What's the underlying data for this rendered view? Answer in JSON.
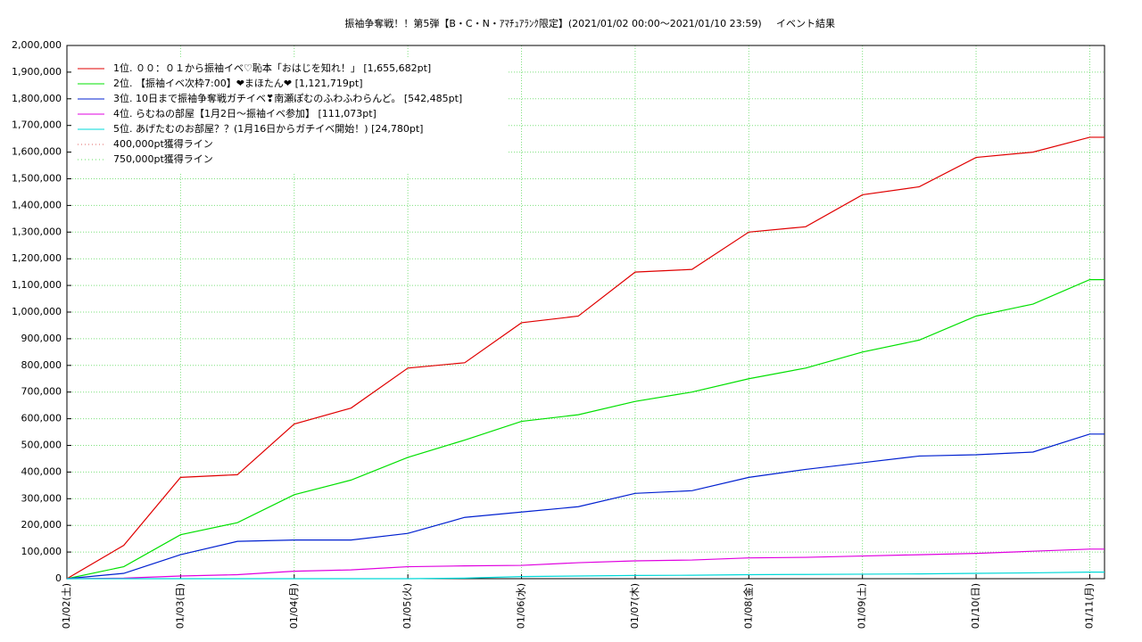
{
  "chart_data": {
    "type": "line",
    "title": "振袖争奪戦！！第5弾【B・C・N・ｱﾏﾁｭｱﾗﾝｸ限定】(2021/01/02 00:00〜2021/01/10 23:59)",
    "subtitle": "イベント結果",
    "x": [
      0,
      0.5,
      1,
      1.5,
      2,
      2.5,
      3,
      3.5,
      4,
      4.5,
      5,
      5.5,
      6,
      6.5,
      7,
      7.5,
      8,
      8.5,
      9,
      9.13
    ],
    "xlim": [
      0,
      9.13
    ],
    "xticks": [
      {
        "value": 0,
        "label": "01/02(土)"
      },
      {
        "value": 1,
        "label": "01/03(日)"
      },
      {
        "value": 2,
        "label": "01/04(月)"
      },
      {
        "value": 3,
        "label": "01/05(火)"
      },
      {
        "value": 4,
        "label": "01/06(水)"
      },
      {
        "value": 5,
        "label": "01/07(木)"
      },
      {
        "value": 6,
        "label": "01/08(金)"
      },
      {
        "value": 7,
        "label": "01/09(土)"
      },
      {
        "value": 8,
        "label": "01/10(日)"
      },
      {
        "value": 9,
        "label": "01/11(月)"
      }
    ],
    "ylim": [
      0,
      2000000
    ],
    "yticks": [
      0,
      {
        "value": 100000,
        "label": "100,000"
      },
      {
        "value": 200000,
        "label": "200,000"
      },
      {
        "value": 300000,
        "label": "300,000"
      },
      {
        "value": 400000,
        "label": "400,000"
      },
      {
        "value": 500000,
        "label": "500,000"
      },
      {
        "value": 600000,
        "label": "600,000"
      },
      {
        "value": 700000,
        "label": "700,000"
      },
      {
        "value": 800000,
        "label": "800,000"
      },
      {
        "value": 900000,
        "label": "900,000"
      },
      {
        "value": 1000000,
        "label": "1,000,000"
      },
      {
        "value": 1100000,
        "label": "1,100,000"
      },
      {
        "value": 1200000,
        "label": "1,200,000"
      },
      {
        "value": 1300000,
        "label": "1,300,000"
      },
      {
        "value": 1400000,
        "label": "1,400,000"
      },
      {
        "value": 1500000,
        "label": "1,500,000"
      },
      {
        "value": 1600000,
        "label": "1,600,000"
      },
      {
        "value": 1700000,
        "label": "1,700,000"
      },
      {
        "value": 1800000,
        "label": "1,800,000"
      },
      {
        "value": 1900000,
        "label": "1,900,000"
      },
      {
        "value": 2000000,
        "label": "2,000,000"
      }
    ],
    "grid": true,
    "legend": "top-left",
    "series": [
      {
        "name": "1位. ００：０１から振袖イベ♡恥本「おはじを知れ！」 [1,655,682pt]",
        "color": "#e00000",
        "values": [
          0,
          125000,
          380000,
          390000,
          580000,
          640000,
          790000,
          810000,
          960000,
          985000,
          1150000,
          1160000,
          1300000,
          1320000,
          1440000,
          1470000,
          1580000,
          1600000,
          1655682,
          1655682
        ]
      },
      {
        "name": "2位. 【振袖イベ次枠7:00】❤まほたん❤ [1,121,719pt]",
        "color": "#00e000",
        "values": [
          0,
          45000,
          165000,
          210000,
          315000,
          370000,
          455000,
          520000,
          590000,
          615000,
          665000,
          700000,
          750000,
          790000,
          850000,
          895000,
          985000,
          1030000,
          1121719,
          1121719
        ]
      },
      {
        "name": "3位. 10日まで振袖争奪戦ガチイベ❣南瀬ぽむのふわふわらんど。 [542,485pt]",
        "color": "#0020d0",
        "values": [
          0,
          20000,
          90000,
          140000,
          145000,
          145000,
          170000,
          230000,
          250000,
          270000,
          320000,
          330000,
          380000,
          410000,
          435000,
          460000,
          465000,
          475000,
          542485,
          542485
        ]
      },
      {
        "name": "4位. らむねの部屋【1月2日〜振袖イベ参加】 [111,073pt]",
        "color": "#e000e0",
        "values": [
          0,
          2000,
          10000,
          15000,
          28000,
          33000,
          45000,
          48000,
          50000,
          60000,
          67000,
          70000,
          78000,
          80000,
          85000,
          90000,
          95000,
          103000,
          111073,
          111073
        ]
      },
      {
        "name": "5位. あげたむのお部屋？？(1月16日からガチイベ開始！) [24,780pt]",
        "color": "#00d8d8",
        "values": [
          0,
          0,
          0,
          0,
          0,
          0,
          0,
          2000,
          8000,
          10000,
          12000,
          13000,
          15000,
          16000,
          17000,
          18000,
          20000,
          22000,
          24780,
          24780
        ]
      },
      {
        "name": "400,000pt獲得ライン",
        "color": "#e06060",
        "dash": "dotted",
        "values": [
          0,
          null,
          null,
          null,
          null,
          null,
          null,
          null,
          null,
          null,
          null,
          null,
          null,
          null,
          null,
          null,
          null,
          null,
          400000,
          null
        ]
      },
      {
        "name": "750,000pt獲得ライン",
        "color": "#60e060",
        "dash": "dotted",
        "values": [
          0,
          null,
          null,
          null,
          null,
          null,
          null,
          null,
          null,
          null,
          null,
          null,
          null,
          null,
          null,
          null,
          null,
          null,
          750000,
          null
        ]
      }
    ]
  }
}
